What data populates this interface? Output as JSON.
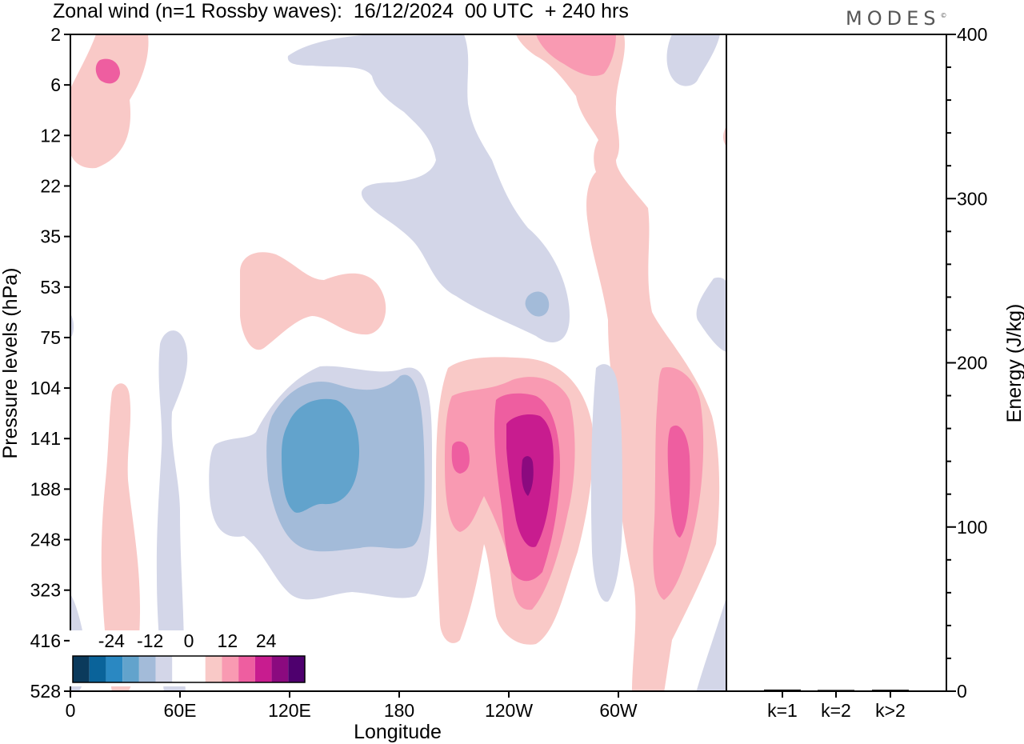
{
  "header": {
    "title": "Zonal wind (n=1 Rossby waves):  16/12/2024  00 UTC  + 240 hrs",
    "brand": "MODES",
    "brand_mark": "©"
  },
  "colors": {
    "neg": [
      "#0b3a5c",
      "#0a639a",
      "#2a88c2",
      "#62a3cc",
      "#a3bbd9",
      "#d3d6e8"
    ],
    "pos": [
      "#f9c9c7",
      "#f99ab2",
      "#ee5ea0",
      "#c81c8f",
      "#8b0a7f",
      "#4e006e"
    ]
  },
  "chart_data": [
    {
      "type": "heatmap",
      "title": "Zonal wind (n=1 Rossby waves):  16/12/2024  00 UTC  + 240 hrs",
      "xlabel": "Longitude",
      "ylabel": "Pressure levels (hPa)",
      "x_ticks": [
        "0",
        "60E",
        "120E",
        "180",
        "120W",
        "60W"
      ],
      "x_tick_degrees": [
        0,
        60,
        120,
        180,
        240,
        300
      ],
      "xlim_degrees": [
        0,
        360
      ],
      "y_ticks": [
        "2",
        "6",
        "12",
        "22",
        "35",
        "53",
        "75",
        "104",
        "141",
        "188",
        "248",
        "323",
        "416",
        "528"
      ],
      "colorbar": {
        "labels": [
          "-24",
          "-12",
          "0",
          "12",
          "24"
        ],
        "label_values": [
          -24,
          -12,
          0,
          12,
          24
        ],
        "levels": [
          -28,
          -24,
          -20,
          -16,
          -12,
          -8,
          -4,
          4,
          8,
          12,
          16,
          20,
          24,
          28
        ]
      },
      "features": [
        {
          "sign": "neg",
          "lon": 140,
          "level_index": 9,
          "peak": -14
        },
        {
          "sign": "pos",
          "lon": 250,
          "level_index": 9,
          "peak": 24
        },
        {
          "sign": "pos",
          "lon": 334,
          "level_index": 9,
          "peak": 16
        },
        {
          "sign": "pos",
          "lon": 225,
          "level_index": 9,
          "peak": 12
        },
        {
          "sign": "neg",
          "lon": 252,
          "level_index": 5,
          "peak": -8
        },
        {
          "sign": "pos",
          "lon": 18,
          "level_index": 1,
          "peak": 12
        },
        {
          "sign": "pos",
          "lon": 275,
          "level_index": 0,
          "peak": 12
        }
      ]
    },
    {
      "type": "bar",
      "categories": [
        "k=1",
        "k=2",
        "k>2"
      ],
      "values": [
        0.5,
        0.3,
        0.4
      ],
      "ylabel": "Energy (J/kg)",
      "ylim": [
        0,
        400
      ],
      "y_ticks": [
        0,
        100,
        200,
        300,
        400
      ]
    }
  ]
}
